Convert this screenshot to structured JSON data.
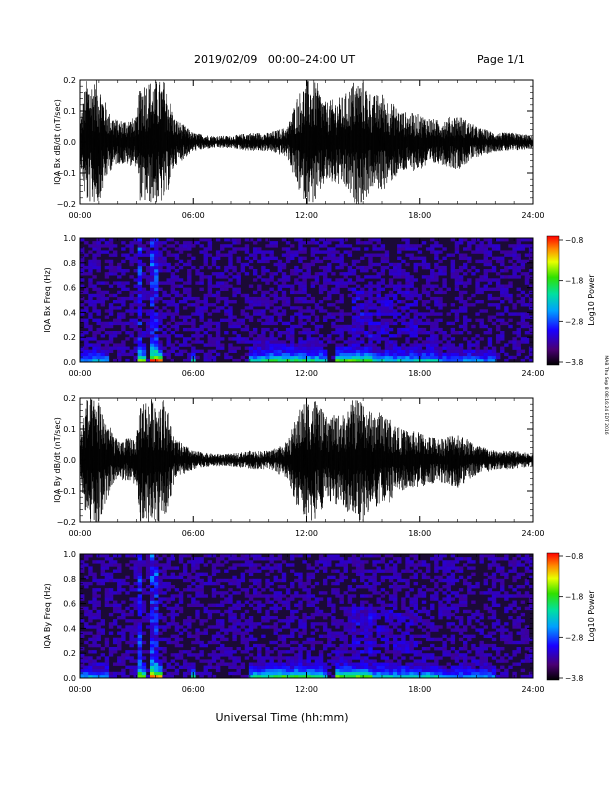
{
  "header": {
    "title": "2019/02/09   00:00–24:00 UT",
    "page_label": "Page 1/1"
  },
  "footer": {
    "xlabel": "Universal Time (hh:mm)"
  },
  "side_note": "MAB Thu Sep 8 08:16:24 EDT 2016",
  "colors": {
    "trace": "#000000",
    "background": "#ffffff"
  },
  "chart_data": [
    {
      "type": "line",
      "ylabel": "IQA Bx dB/dt (nT/sec)",
      "xlim": [
        "00:00",
        "24:00"
      ],
      "ylim": [
        -0.2,
        0.2
      ],
      "xticks": [
        "00:00",
        "06:00",
        "12:00",
        "18:00",
        "24:00"
      ],
      "yticks": [
        "−0.2",
        "−0.1",
        "0.0",
        "0.1",
        "0.2"
      ],
      "amplitude_envelope": {
        "hours": [
          0,
          0.3,
          1,
          1.5,
          2,
          3,
          3.2,
          3.5,
          4,
          4.5,
          5,
          6,
          7,
          8,
          9,
          10,
          11,
          11.5,
          12,
          12.5,
          13,
          14,
          14.5,
          15,
          15.5,
          16,
          17,
          18,
          19,
          20,
          21,
          22,
          23,
          24
        ],
        "amplitude": [
          0.06,
          0.2,
          0.2,
          0.1,
          0.07,
          0.08,
          0.2,
          0.2,
          0.2,
          0.2,
          0.08,
          0.03,
          0.02,
          0.02,
          0.03,
          0.03,
          0.05,
          0.15,
          0.2,
          0.2,
          0.13,
          0.15,
          0.2,
          0.2,
          0.15,
          0.16,
          0.1,
          0.09,
          0.07,
          0.09,
          0.05,
          0.03,
          0.03,
          0.02
        ]
      }
    },
    {
      "type": "heatmap",
      "ylabel": "IQA Bx Freq (Hz)",
      "xlim": [
        "00:00",
        "24:00"
      ],
      "ylim": [
        0,
        1.0
      ],
      "xticks": [
        "00:00",
        "06:00",
        "12:00",
        "18:00",
        "24:00"
      ],
      "yticks": [
        "0.0",
        "0.2",
        "0.4",
        "0.6",
        "0.8",
        "1.0"
      ],
      "colorbar": {
        "label": "Log10 Power",
        "ticks": [
          "−0.8",
          "−1.8",
          "−2.8",
          "−3.8"
        ],
        "range": [
          -3.8,
          -0.8
        ]
      }
    },
    {
      "type": "line",
      "ylabel": "IQA By dB/dt (nT/sec)",
      "xlim": [
        "00:00",
        "24:00"
      ],
      "ylim": [
        -0.2,
        0.2
      ],
      "xticks": [
        "00:00",
        "06:00",
        "12:00",
        "18:00",
        "24:00"
      ],
      "yticks": [
        "−0.2",
        "−0.1",
        "0.0",
        "0.1",
        "0.2"
      ],
      "amplitude_envelope": {
        "hours": [
          0,
          0.3,
          1,
          1.5,
          2,
          3,
          3.2,
          3.5,
          4,
          4.5,
          5,
          6,
          7,
          8,
          9,
          10,
          11,
          11.5,
          12,
          12.5,
          13,
          14,
          14.5,
          15,
          15.5,
          16,
          17,
          18,
          19,
          20,
          21,
          22,
          23,
          24
        ],
        "amplitude": [
          0.07,
          0.2,
          0.2,
          0.12,
          0.06,
          0.08,
          0.2,
          0.2,
          0.2,
          0.2,
          0.07,
          0.03,
          0.02,
          0.02,
          0.03,
          0.03,
          0.06,
          0.15,
          0.2,
          0.2,
          0.14,
          0.15,
          0.2,
          0.2,
          0.15,
          0.16,
          0.1,
          0.09,
          0.07,
          0.09,
          0.05,
          0.03,
          0.03,
          0.02
        ]
      }
    },
    {
      "type": "heatmap",
      "ylabel": "IQA By Freq (Hz)",
      "xlim": [
        "00:00",
        "24:00"
      ],
      "ylim": [
        0,
        1.0
      ],
      "xticks": [
        "00:00",
        "06:00",
        "12:00",
        "18:00",
        "24:00"
      ],
      "yticks": [
        "0.0",
        "0.2",
        "0.4",
        "0.6",
        "0.8",
        "1.0"
      ],
      "colorbar": {
        "label": "Log10 Power",
        "ticks": [
          "−0.8",
          "−1.8",
          "−2.8",
          "−3.8"
        ],
        "range": [
          -3.8,
          -0.8
        ]
      }
    }
  ]
}
